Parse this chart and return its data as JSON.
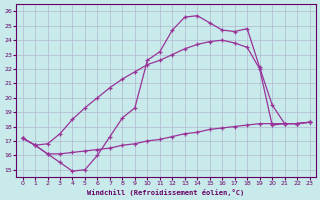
{
  "xlabel": "Windchill (Refroidissement éolien,°C)",
  "background_color": "#c8eaea",
  "line_color": "#993399",
  "xlim": [
    -0.5,
    23.5
  ],
  "ylim": [
    14.5,
    26.5
  ],
  "xticks": [
    0,
    1,
    2,
    3,
    4,
    5,
    6,
    7,
    8,
    9,
    10,
    11,
    12,
    13,
    14,
    15,
    16,
    17,
    18,
    19,
    20,
    21,
    22,
    23
  ],
  "yticks": [
    15,
    16,
    17,
    18,
    19,
    20,
    21,
    22,
    23,
    24,
    25,
    26
  ],
  "line1_x": [
    0,
    1,
    2,
    3,
    4,
    5,
    6,
    7,
    8,
    9,
    10,
    11,
    12,
    13,
    14,
    15,
    16,
    17,
    18,
    19,
    20,
    21,
    22,
    23
  ],
  "line1_y": [
    17.2,
    16.7,
    16.1,
    15.5,
    14.9,
    15.0,
    16.0,
    17.3,
    18.6,
    19.3,
    22.6,
    23.2,
    24.7,
    25.6,
    25.7,
    25.2,
    24.7,
    24.6,
    24.8,
    22.1,
    19.5,
    18.2,
    18.2,
    18.3
  ],
  "line2_x": [
    0,
    1,
    2,
    3,
    4,
    5,
    6,
    7,
    8,
    9,
    10,
    11,
    12,
    13,
    14,
    15,
    16,
    17,
    18,
    19,
    20,
    21,
    22,
    23
  ],
  "line2_y": [
    17.2,
    16.7,
    16.8,
    17.5,
    18.5,
    19.3,
    20.0,
    20.7,
    21.3,
    21.8,
    22.3,
    22.6,
    23.0,
    23.4,
    23.7,
    23.9,
    24.0,
    23.8,
    23.5,
    22.0,
    18.1,
    18.2,
    18.2,
    18.3
  ],
  "line3_x": [
    0,
    1,
    2,
    3,
    4,
    5,
    6,
    7,
    8,
    9,
    10,
    11,
    12,
    13,
    14,
    15,
    16,
    17,
    18,
    19,
    20,
    21,
    22,
    23
  ],
  "line3_y": [
    17.2,
    16.7,
    16.1,
    16.1,
    16.2,
    16.3,
    16.4,
    16.5,
    16.7,
    16.8,
    17.0,
    17.1,
    17.3,
    17.5,
    17.6,
    17.8,
    17.9,
    18.0,
    18.1,
    18.2,
    18.2,
    18.2,
    18.2,
    18.3
  ],
  "grid_color": "#b0b8d0",
  "label_color": "#660066",
  "tick_color": "#660066",
  "markersize": 3,
  "linewidth": 0.9
}
